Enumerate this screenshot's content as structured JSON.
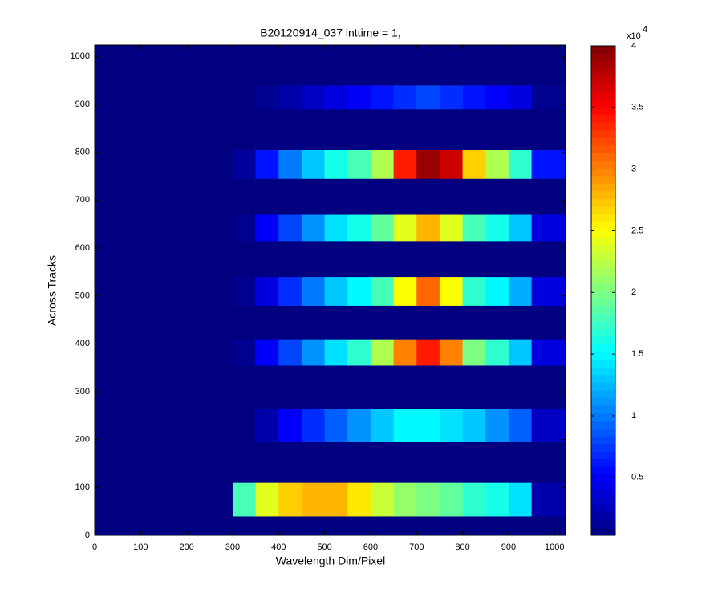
{
  "chart_data": {
    "type": "heatmap",
    "title": "B20120914_037 inttime = 1,",
    "xlabel": "Wavelength Dim/Pixel",
    "ylabel": "Across Tracks",
    "colormap": "jet",
    "xbins": [
      0,
      300,
      350,
      400,
      450,
      500,
      550,
      600,
      650,
      700,
      750,
      800,
      850,
      900,
      950,
      1024
    ],
    "ybins": [
      0,
      40,
      110,
      195,
      265,
      355,
      410,
      480,
      540,
      615,
      670,
      745,
      805,
      890,
      940,
      1024
    ],
    "values": [
      [
        300,
        300,
        300,
        300,
        300,
        300,
        300,
        300,
        300,
        300,
        300,
        300,
        300,
        300,
        300
      ],
      [
        300,
        18000,
        24000,
        27000,
        28000,
        28000,
        26000,
        23000,
        21000,
        20000,
        19000,
        17000,
        16000,
        14000,
        2000
      ],
      [
        300,
        300,
        300,
        300,
        300,
        300,
        300,
        300,
        300,
        300,
        300,
        300,
        300,
        300,
        300
      ],
      [
        300,
        300,
        2000,
        5000,
        7000,
        9000,
        11000,
        13000,
        15000,
        15000,
        14000,
        13000,
        11000,
        9000,
        3000
      ],
      [
        300,
        300,
        300,
        300,
        300,
        300,
        300,
        300,
        300,
        300,
        300,
        300,
        300,
        300,
        300
      ],
      [
        300,
        1000,
        5000,
        8000,
        11000,
        14000,
        17000,
        22000,
        30000,
        34000,
        30000,
        20000,
        17000,
        13000,
        4000
      ],
      [
        300,
        300,
        300,
        300,
        300,
        300,
        300,
        300,
        300,
        300,
        300,
        300,
        300,
        300,
        300
      ],
      [
        300,
        1000,
        4000,
        7000,
        10000,
        13000,
        15000,
        18000,
        25000,
        31000,
        25000,
        17000,
        15000,
        12000,
        4000
      ],
      [
        300,
        300,
        300,
        300,
        300,
        300,
        300,
        300,
        300,
        300,
        300,
        300,
        300,
        300,
        300
      ],
      [
        300,
        1000,
        5000,
        8000,
        11000,
        14000,
        16000,
        19000,
        24000,
        28000,
        24000,
        18000,
        16000,
        13000,
        4000
      ],
      [
        300,
        300,
        300,
        300,
        300,
        300,
        300,
        300,
        300,
        300,
        300,
        300,
        300,
        300,
        300
      ],
      [
        300,
        1500,
        6000,
        10000,
        13000,
        16000,
        18000,
        22000,
        34000,
        39000,
        37000,
        27000,
        22000,
        17000,
        6000
      ],
      [
        300,
        300,
        300,
        300,
        300,
        300,
        300,
        300,
        300,
        300,
        300,
        300,
        300,
        300,
        300
      ],
      [
        300,
        300,
        1000,
        2000,
        3000,
        4000,
        5000,
        6000,
        7000,
        8000,
        7000,
        6000,
        5000,
        4000,
        1000
      ],
      [
        300,
        300,
        300,
        300,
        300,
        300,
        300,
        300,
        300,
        300,
        300,
        300,
        300,
        300,
        300
      ]
    ],
    "xlim": [
      0,
      1024
    ],
    "xticks": [
      0,
      100,
      200,
      300,
      400,
      500,
      600,
      700,
      800,
      900,
      1000
    ],
    "ylim": [
      0,
      1024
    ],
    "yticks": [
      0,
      100,
      200,
      300,
      400,
      500,
      600,
      700,
      800,
      900,
      1000
    ],
    "colorbar": {
      "clim": [
        300,
        40000
      ],
      "ticks": [
        {
          "value": 5000,
          "label": "0.5"
        },
        {
          "value": 10000,
          "label": "1"
        },
        {
          "value": 15000,
          "label": "1.5"
        },
        {
          "value": 20000,
          "label": "2"
        },
        {
          "value": 25000,
          "label": "2.5"
        },
        {
          "value": 30000,
          "label": "3"
        },
        {
          "value": 35000,
          "label": "3.5"
        },
        {
          "value": 40000,
          "label": "4"
        }
      ],
      "multiplier": "x10",
      "exponent": "4"
    }
  }
}
